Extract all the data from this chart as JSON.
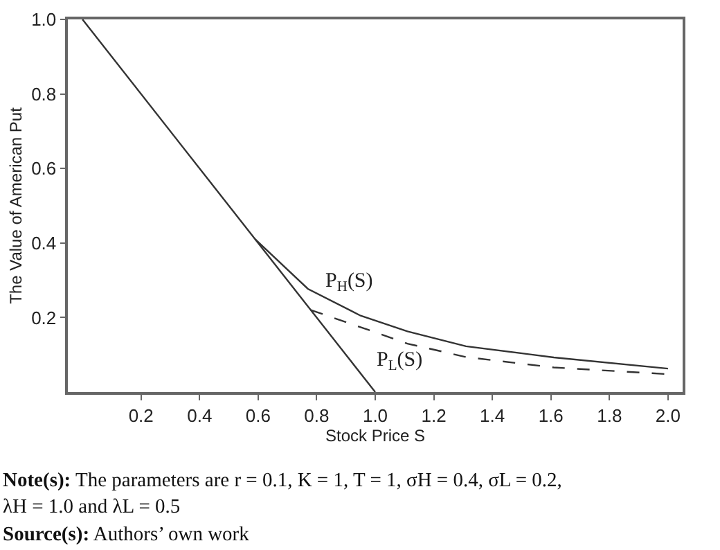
{
  "chart_data": {
    "type": "line",
    "xlabel": "Stock Price S",
    "ylabel": "The Value of American Put",
    "xlim": [
      -0.05,
      2.05
    ],
    "ylim": [
      0,
      1.0
    ],
    "xticks": [
      0.2,
      0.4,
      0.6,
      0.8,
      {
        "value": 1,
        "label": "1.0"
      },
      1.2,
      1.4,
      1.6,
      1.8,
      {
        "value": 2,
        "label": "2.0"
      }
    ],
    "yticks": [
      0.2,
      0.4,
      0.6,
      0.8,
      {
        "value": 1,
        "label": "1.0"
      }
    ],
    "marker": "none",
    "series": [
      {
        "color": "#333333",
        "line_style": "solid",
        "x": [
          0,
          1.0
        ],
        "values": [
          1.0,
          0
        ]
      },
      {
        "name": "P$_{H}$(S)",
        "color": "#333333",
        "line_style": "solid",
        "x": [
          0.59,
          0.77,
          0.95,
          1.11,
          1.31,
          1.61,
          2.0
        ],
        "values": [
          0.41,
          0.277,
          0.205,
          0.163,
          0.123,
          0.093,
          0.063
        ]
      },
      {
        "name": "P$_{L}$(S)",
        "color": "#333333",
        "line_style": "dashed",
        "x": [
          0.78,
          0.98,
          1.11,
          1.31,
          1.61,
          2.0
        ],
        "values": [
          0.22,
          0.166,
          0.13,
          0.094,
          0.066,
          0.048
        ]
      }
    ],
    "annotations": [
      "Note(s): The parameters are r = 0.1, K = 1, T = 1, σH = 0.4, σL = 0.2,\nλH = 1.0 and λL = 0.5",
      "Source(s): Authors’ own work"
    ]
  }
}
